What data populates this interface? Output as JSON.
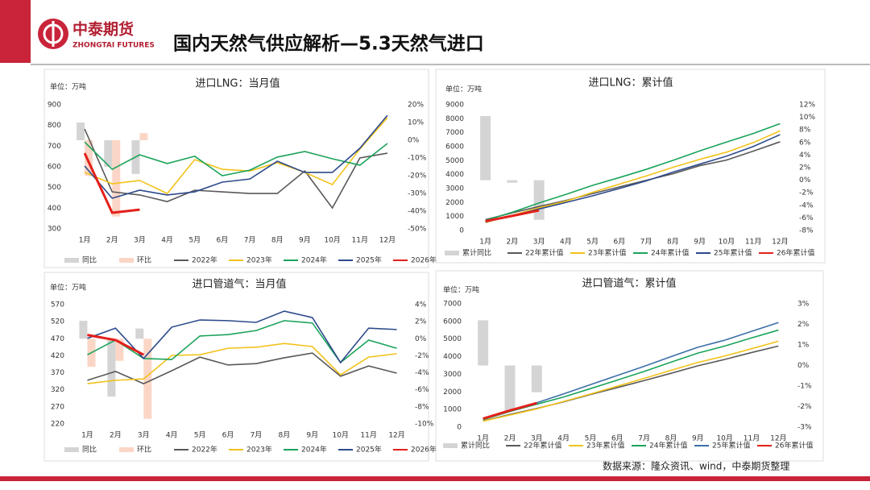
{
  "header": {
    "brand": "中泰期货",
    "brand_en": "ZHONGTAI FUTURES",
    "title": "国内天然气供应解析—5.3天然气进口"
  },
  "footer": {
    "source": "数据来源：隆众资讯、wind，中泰期货整理"
  },
  "chart_data": [
    {
      "type": "combo",
      "title": "进口LNG：当月值",
      "unit": "单位：万吨",
      "categories": [
        "1月",
        "2月",
        "3月",
        "4月",
        "5月",
        "6月",
        "7月",
        "8月",
        "9月",
        "10月",
        "11月",
        "12月"
      ],
      "ylim": [
        300,
        900
      ],
      "yticks": [
        300,
        400,
        500,
        600,
        700,
        800,
        900
      ],
      "y2lim": [
        -50,
        20
      ],
      "y2ticks": [
        {
          "value": -50,
          "label": "-50%"
        },
        {
          "value": -40,
          "label": "-40%"
        },
        {
          "value": -30,
          "label": "-30%"
        },
        {
          "value": -20,
          "label": "-20%"
        },
        {
          "value": -10,
          "label": "-10%"
        },
        {
          "value": 0,
          "label": "0%"
        },
        {
          "value": 10,
          "label": "10%"
        },
        {
          "value": 20,
          "label": "20%"
        }
      ],
      "series": [
        {
          "name": "同比",
          "type": "bar",
          "axis": "y2",
          "color": "#d4d4d4",
          "values": [
            10,
            -15,
            -19,
            null,
            null,
            null,
            null,
            null,
            null,
            null,
            null,
            null
          ]
        },
        {
          "name": "环比",
          "type": "bar",
          "axis": "y2",
          "color": "#fbd6c6",
          "values": [
            -20,
            -43,
            4,
            null,
            null,
            null,
            null,
            null,
            null,
            null,
            null,
            null
          ]
        },
        {
          "name": "2022年",
          "type": "line",
          "color": "#595959",
          "values": [
            783,
            479,
            464,
            432,
            487,
            479,
            471,
            471,
            580,
            401,
            643,
            666
          ]
        },
        {
          "name": "2023年",
          "type": "line",
          "color": "#f2c21b",
          "values": [
            573,
            518,
            534,
            471,
            635,
            588,
            580,
            620,
            573,
            514,
            686,
            838
          ]
        },
        {
          "name": "2024年",
          "type": "line",
          "color": "#1ba35b",
          "values": [
            720,
            588,
            658,
            616,
            651,
            557,
            584,
            647,
            674,
            639,
            608,
            713
          ]
        },
        {
          "name": "2025年",
          "type": "line",
          "color": "#2d4a8c",
          "values": [
            604,
            448,
            487,
            464,
            479,
            526,
            541,
            627,
            573,
            573,
            690,
            849
          ]
        },
        {
          "name": "2026年",
          "type": "line",
          "color": "#e3201b",
          "values": [
            666,
            378,
            393,
            null,
            null,
            null,
            null,
            null,
            null,
            null,
            null,
            null
          ]
        }
      ]
    },
    {
      "type": "combo",
      "title": "进口LNG：累计值",
      "unit": "单位：万吨",
      "categories": [
        "1月",
        "2月",
        "3月",
        "4月",
        "5月",
        "6月",
        "7月",
        "8月",
        "9月",
        "10月",
        "11月",
        "12月"
      ],
      "ylim": [
        0,
        9000
      ],
      "yticks": [
        0,
        1000,
        2000,
        3000,
        4000,
        5000,
        6000,
        7000,
        8000,
        9000
      ],
      "y2lim": [
        -8,
        12
      ],
      "y2ticks": [
        {
          "value": -8,
          "label": "-8%"
        },
        {
          "value": -6,
          "label": "-6%"
        },
        {
          "value": -4,
          "label": "-4%"
        },
        {
          "value": -2,
          "label": "-2%"
        },
        {
          "value": 0,
          "label": "0%"
        },
        {
          "value": 2,
          "label": "2%"
        },
        {
          "value": 4,
          "label": "4%"
        },
        {
          "value": 6,
          "label": "6%"
        },
        {
          "value": 8,
          "label": "8%"
        },
        {
          "value": 10,
          "label": "10%"
        },
        {
          "value": 12,
          "label": "12%"
        }
      ],
      "series": [
        {
          "name": "累计同比",
          "type": "bar",
          "axis": "y2",
          "color": "#d4d4d4",
          "values": [
            10.2,
            -0.4,
            -6.3,
            null,
            null,
            null,
            null,
            null,
            null,
            null,
            null,
            null
          ]
        },
        {
          "name": "22年累计值",
          "type": "line",
          "color": "#595959",
          "values": [
            780,
            1260,
            1720,
            2150,
            2640,
            3120,
            3590,
            4060,
            4640,
            5040,
            5680,
            6350
          ]
        },
        {
          "name": "23年累计值",
          "type": "line",
          "color": "#f2c21b",
          "values": [
            573,
            1091,
            1625,
            2096,
            2731,
            3319,
            3899,
            4519,
            5092,
            5606,
            6292,
            7130
          ]
        },
        {
          "name": "24年累计值",
          "type": "line",
          "color": "#1ba35b",
          "values": [
            720,
            1308,
            1966,
            2582,
            3233,
            3790,
            4374,
            5021,
            5695,
            6334,
            6942,
            7655
          ]
        },
        {
          "name": "25年累计值",
          "type": "line",
          "color": "#2d4a8c",
          "values": [
            604,
            1052,
            1539,
            2003,
            2482,
            3008,
            3549,
            4176,
            4749,
            5322,
            6012,
            6861
          ]
        },
        {
          "name": "26年累计值",
          "type": "line",
          "color": "#e3201b",
          "values": [
            666,
            1044,
            1437,
            null,
            null,
            null,
            null,
            null,
            null,
            null,
            null,
            null
          ]
        }
      ]
    },
    {
      "type": "combo",
      "title": "进口管道气：当月值",
      "unit": "单位：万吨",
      "categories": [
        "1月",
        "2月",
        "3月",
        "4月",
        "5月",
        "6月",
        "7月",
        "8月",
        "9月",
        "10月",
        "11月",
        "12月"
      ],
      "ylim": [
        220,
        570
      ],
      "yticks": [
        220,
        270,
        320,
        370,
        420,
        470,
        520,
        570
      ],
      "y2lim": [
        -10,
        4
      ],
      "y2ticks": [
        {
          "value": -10,
          "label": "-10%"
        },
        {
          "value": -8,
          "label": "-8%"
        },
        {
          "value": -6,
          "label": "-6%"
        },
        {
          "value": -4,
          "label": "-4%"
        },
        {
          "value": -2,
          "label": "-2%"
        },
        {
          "value": 0,
          "label": "0%"
        },
        {
          "value": 2,
          "label": "2%"
        },
        {
          "value": 4,
          "label": "4%"
        }
      ],
      "series": [
        {
          "name": "同比",
          "type": "bar",
          "axis": "y2",
          "color": "#d4d4d4",
          "values": [
            2.1,
            -6.8,
            1.2,
            null,
            null,
            null,
            null,
            null,
            null,
            null,
            null,
            null
          ]
        },
        {
          "name": "环比",
          "type": "bar",
          "axis": "y2",
          "color": "#fbd6c6",
          "values": [
            -3.3,
            -2.6,
            -9.4,
            null,
            null,
            null,
            null,
            null,
            null,
            null,
            null,
            null
          ]
        },
        {
          "name": "2022年",
          "type": "line",
          "color": "#595959",
          "values": [
            348,
            374,
            338,
            376,
            416,
            393,
            397,
            414,
            428,
            360,
            390,
            369
          ]
        },
        {
          "name": "2023年",
          "type": "line",
          "color": "#f2c21b",
          "values": [
            338,
            348,
            352,
            421,
            423,
            442,
            445,
            456,
            447,
            364,
            416,
            426
          ]
        },
        {
          "name": "2024年",
          "type": "line",
          "color": "#1ba35b",
          "values": [
            423,
            466,
            412,
            409,
            478,
            482,
            494,
            523,
            516,
            400,
            466,
            442
          ]
        },
        {
          "name": "2025年",
          "type": "line",
          "color": "#2d4a8c",
          "values": [
            471,
            501,
            412,
            504,
            525,
            523,
            518,
            551,
            532,
            400,
            501,
            497
          ]
        },
        {
          "name": "2026年",
          "type": "line",
          "color": "#e3201b",
          "values": [
            481,
            466,
            423,
            null,
            null,
            null,
            null,
            null,
            null,
            null,
            null,
            null
          ]
        }
      ]
    },
    {
      "type": "combo",
      "title": "进口管道气：累计值",
      "unit": "单位：万吨",
      "categories": [
        "1月",
        "2月",
        "3月",
        "4月",
        "5月",
        "6月",
        "7月",
        "8月",
        "9月",
        "10月",
        "11月",
        "12月"
      ],
      "ylim": [
        0,
        7000
      ],
      "yticks": [
        0,
        1000,
        2000,
        3000,
        4000,
        5000,
        6000,
        7000
      ],
      "y2lim": [
        -3,
        3
      ],
      "y2ticks": [
        {
          "value": -3,
          "label": "-3%"
        },
        {
          "value": -2,
          "label": "-2%"
        },
        {
          "value": -1,
          "label": "-1%"
        },
        {
          "value": 0,
          "label": "0%"
        },
        {
          "value": 1,
          "label": "1%"
        },
        {
          "value": 2,
          "label": "2%"
        },
        {
          "value": 3,
          "label": "3%"
        }
      ],
      "series": [
        {
          "name": "累计同比",
          "type": "bar",
          "axis": "y2",
          "color": "#d4d4d4",
          "values": [
            2.2,
            -2.2,
            -1.3,
            null,
            null,
            null,
            null,
            null,
            null,
            null,
            null,
            null
          ]
        },
        {
          "name": "22年累计值",
          "type": "line",
          "color": "#595959",
          "values": [
            348,
            722,
            1060,
            1436,
            1852,
            2245,
            2642,
            3056,
            3484,
            3844,
            4234,
            4603
          ]
        },
        {
          "name": "23年累计值",
          "type": "line",
          "color": "#f2c21b",
          "values": [
            338,
            686,
            1038,
            1459,
            1882,
            2324,
            2769,
            3225,
            3672,
            4036,
            4452,
            4878
          ]
        },
        {
          "name": "24年累计值",
          "type": "line",
          "color": "#1ba35b",
          "values": [
            423,
            889,
            1301,
            1710,
            2188,
            2670,
            3164,
            3687,
            4203,
            4603,
            5069,
            5511
          ]
        },
        {
          "name": "25年累计值",
          "type": "line",
          "color": "#3d6fa8",
          "values": [
            471,
            972,
            1384,
            1888,
            2413,
            2936,
            3454,
            4005,
            4537,
            4937,
            5438,
            5935
          ]
        },
        {
          "name": "26年累计值",
          "type": "line",
          "color": "#e3201b",
          "values": [
            481,
            947,
            1370,
            null,
            null,
            null,
            null,
            null,
            null,
            null,
            null,
            null
          ]
        }
      ]
    }
  ]
}
